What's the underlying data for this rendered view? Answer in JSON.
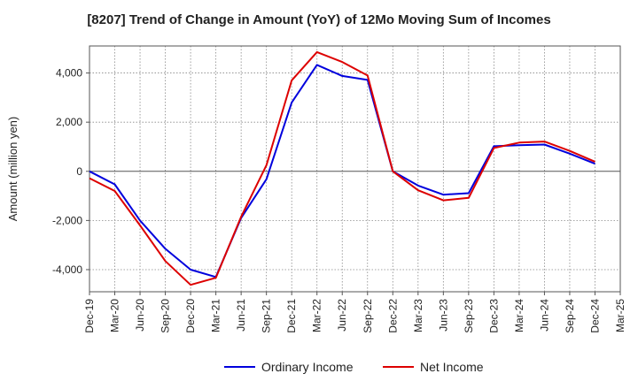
{
  "chart_data": {
    "type": "line",
    "title": "[8207]  Trend of Change in Amount (YoY) of 12Mo Moving Sum of Incomes",
    "ylabel": "Amount (million yen)",
    "xlabel": "",
    "categories": [
      "Dec-19",
      "Mar-20",
      "Jun-20",
      "Sep-20",
      "Dec-20",
      "Mar-21",
      "Jun-21",
      "Sep-21",
      "Dec-21",
      "Mar-22",
      "Jun-22",
      "Sep-22",
      "Dec-22",
      "Mar-23",
      "Jun-23",
      "Sep-23",
      "Dec-23",
      "Mar-24",
      "Jun-24",
      "Sep-24",
      "Dec-24",
      "Mar-25"
    ],
    "ylim": [
      -4900,
      5100
    ],
    "yticks": [
      -4000,
      -2000,
      0,
      2000,
      4000
    ],
    "ytick_labels": [
      "-4,000",
      "-2,000",
      "0",
      "2,000",
      "4,000"
    ],
    "grid": true,
    "legend_position": "bottom",
    "series": [
      {
        "name": "Ordinary Income",
        "color": "#0000dd",
        "values": [
          0,
          -530,
          -2000,
          -3150,
          -4000,
          -4300,
          -1900,
          -320,
          2800,
          4330,
          3880,
          3720,
          0,
          -580,
          -950,
          -890,
          1020,
          1060,
          1090,
          720,
          310,
          null
        ]
      },
      {
        "name": "Net Income",
        "color": "#dd0000",
        "values": [
          -280,
          -800,
          -2200,
          -3650,
          -4620,
          -4330,
          -1850,
          250,
          3700,
          4850,
          4450,
          3900,
          0,
          -770,
          -1180,
          -1080,
          950,
          1170,
          1210,
          830,
          390,
          null
        ]
      }
    ]
  }
}
